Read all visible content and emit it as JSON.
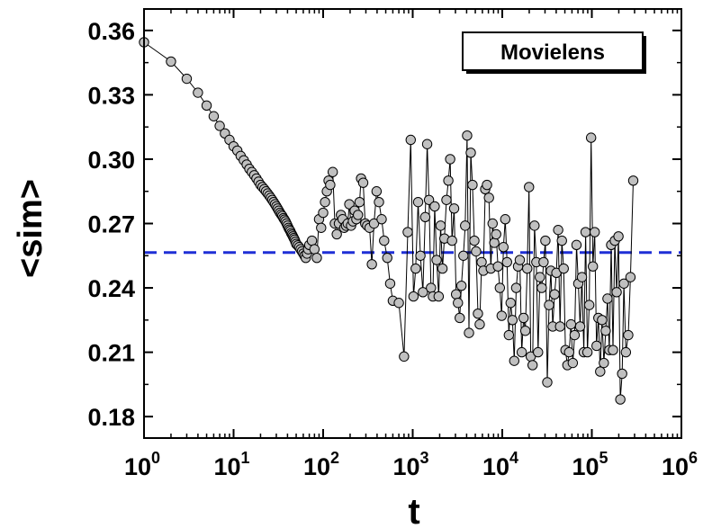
{
  "chart_data": {
    "type": "scatter",
    "xlabel": "t",
    "ylabel": "<sim>",
    "xscale": "log",
    "xlim": [
      1,
      1000000
    ],
    "ylim": [
      0.17,
      0.37
    ],
    "x_ticks": [
      {
        "value": 1,
        "base": "10",
        "exp": "0"
      },
      {
        "value": 10,
        "base": "10",
        "exp": "1"
      },
      {
        "value": 100,
        "base": "10",
        "exp": "2"
      },
      {
        "value": 1000,
        "base": "10",
        "exp": "3"
      },
      {
        "value": 10000,
        "base": "10",
        "exp": "4"
      },
      {
        "value": 100000,
        "base": "10",
        "exp": "5"
      },
      {
        "value": 1000000,
        "base": "10",
        "exp": "6"
      }
    ],
    "y_ticks": [
      {
        "value": 0.18,
        "label": "0.18"
      },
      {
        "value": 0.21,
        "label": "0.21"
      },
      {
        "value": 0.24,
        "label": "0.24"
      },
      {
        "value": 0.27,
        "label": "0.27"
      },
      {
        "value": 0.3,
        "label": "0.30"
      },
      {
        "value": 0.33,
        "label": "0.33"
      },
      {
        "value": 0.36,
        "label": "0.36"
      }
    ],
    "legend": {
      "label": "Movielens",
      "position": "top-right"
    },
    "reference_line": {
      "y": 0.2565,
      "style": "dashed",
      "color": "#1f2fd6"
    },
    "series": [
      {
        "marker_color": "#c0c0c0",
        "line_color": "#000000",
        "points": [
          [
            1,
            0.3545
          ],
          [
            2,
            0.3455
          ],
          [
            3,
            0.3375
          ],
          [
            4,
            0.331
          ],
          [
            5,
            0.325
          ],
          [
            6,
            0.32
          ],
          [
            7,
            0.3155
          ],
          [
            8,
            0.312
          ],
          [
            9,
            0.309
          ],
          [
            10,
            0.306
          ],
          [
            11,
            0.304
          ],
          [
            12,
            0.3015
          ],
          [
            13,
            0.2995
          ],
          [
            14,
            0.2975
          ],
          [
            15,
            0.2955
          ],
          [
            16,
            0.294
          ],
          [
            17,
            0.2925
          ],
          [
            18,
            0.291
          ],
          [
            19,
            0.2895
          ],
          [
            20,
            0.288
          ],
          [
            21,
            0.287
          ],
          [
            22,
            0.286
          ],
          [
            23,
            0.285
          ],
          [
            24,
            0.284
          ],
          [
            25,
            0.283
          ],
          [
            26,
            0.282
          ],
          [
            27,
            0.281
          ],
          [
            28,
            0.28
          ],
          [
            29,
            0.279
          ],
          [
            30,
            0.278
          ],
          [
            31,
            0.277
          ],
          [
            32,
            0.276
          ],
          [
            33,
            0.275
          ],
          [
            34,
            0.2742
          ],
          [
            35,
            0.2735
          ],
          [
            36,
            0.2725
          ],
          [
            37,
            0.2718
          ],
          [
            38,
            0.271
          ],
          [
            39,
            0.27
          ],
          [
            40,
            0.269
          ],
          [
            41,
            0.268
          ],
          [
            42,
            0.2672
          ],
          [
            43,
            0.2665
          ],
          [
            44,
            0.2655
          ],
          [
            45,
            0.2648
          ],
          [
            46,
            0.264
          ],
          [
            47,
            0.2632
          ],
          [
            48,
            0.2625
          ],
          [
            49,
            0.2615
          ],
          [
            50,
            0.2605
          ],
          [
            52,
            0.2598
          ],
          [
            54,
            0.259
          ],
          [
            56,
            0.258
          ],
          [
            58,
            0.257
          ],
          [
            60,
            0.256
          ],
          [
            62,
            0.255
          ],
          [
            64,
            0.254
          ],
          [
            66,
            0.256
          ],
          [
            68,
            0.258
          ],
          [
            70,
            0.26
          ],
          [
            75,
            0.262
          ],
          [
            80,
            0.258
          ],
          [
            85,
            0.254
          ],
          [
            90,
            0.272
          ],
          [
            95,
            0.268
          ],
          [
            100,
            0.275
          ],
          [
            105,
            0.28
          ],
          [
            110,
            0.285
          ],
          [
            115,
            0.29
          ],
          [
            120,
            0.288
          ],
          [
            128,
            0.294
          ],
          [
            135,
            0.27
          ],
          [
            142,
            0.265
          ],
          [
            150,
            0.27
          ],
          [
            158,
            0.274
          ],
          [
            165,
            0.272
          ],
          [
            172,
            0.268
          ],
          [
            180,
            0.269
          ],
          [
            188,
            0.27
          ],
          [
            196,
            0.279
          ],
          [
            205,
            0.269
          ],
          [
            215,
            0.271
          ],
          [
            225,
            0.276
          ],
          [
            235,
            0.272
          ],
          [
            245,
            0.274
          ],
          [
            255,
            0.28
          ],
          [
            265,
            0.291
          ],
          [
            280,
            0.289
          ],
          [
            295,
            0.27
          ],
          [
            310,
            0.269
          ],
          [
            330,
            0.268
          ],
          [
            350,
            0.251
          ],
          [
            370,
            0.27
          ],
          [
            395,
            0.285
          ],
          [
            420,
            0.28
          ],
          [
            450,
            0.272
          ],
          [
            480,
            0.262
          ],
          [
            520,
            0.254
          ],
          [
            560,
            0.242
          ],
          [
            600,
            0.234
          ],
          [
            700,
            0.233
          ],
          [
            800,
            0.208
          ],
          [
            880,
            0.266
          ],
          [
            950,
            0.309
          ],
          [
            1020,
            0.236
          ],
          [
            1080,
            0.249
          ],
          [
            1150,
            0.28
          ],
          [
            1220,
            0.255
          ],
          [
            1300,
            0.238
          ],
          [
            1380,
            0.273
          ],
          [
            1450,
            0.307
          ],
          [
            1520,
            0.281
          ],
          [
            1600,
            0.24
          ],
          [
            1680,
            0.236
          ],
          [
            1760,
            0.278
          ],
          [
            1850,
            0.253
          ],
          [
            1950,
            0.236
          ],
          [
            2050,
            0.269
          ],
          [
            2150,
            0.249
          ],
          [
            2260,
            0.263
          ],
          [
            2380,
            0.281
          ],
          [
            2500,
            0.29
          ],
          [
            2620,
            0.3
          ],
          [
            2750,
            0.262
          ],
          [
            2900,
            0.277
          ],
          [
            3050,
            0.237
          ],
          [
            3200,
            0.233
          ],
          [
            3350,
            0.226
          ],
          [
            3500,
            0.241
          ],
          [
            3680,
            0.255
          ],
          [
            3850,
            0.269
          ],
          [
            4050,
            0.311
          ],
          [
            4250,
            0.219
          ],
          [
            4450,
            0.303
          ],
          [
            4650,
            0.288
          ],
          [
            4880,
            0.262
          ],
          [
            5100,
            0.257
          ],
          [
            5350,
            0.228
          ],
          [
            5600,
            0.223
          ],
          [
            5880,
            0.252
          ],
          [
            6150,
            0.248
          ],
          [
            6450,
            0.286
          ],
          [
            6750,
            0.288
          ],
          [
            7100,
            0.282
          ],
          [
            7450,
            0.249
          ],
          [
            7800,
            0.27
          ],
          [
            8150,
            0.261
          ],
          [
            8550,
            0.265
          ],
          [
            8950,
            0.25
          ],
          [
            9400,
            0.24
          ],
          [
            9850,
            0.227
          ],
          [
            10300,
            0.259
          ],
          [
            10800,
            0.272
          ],
          [
            11300,
            0.252
          ],
          [
            11850,
            0.218
          ],
          [
            12400,
            0.233
          ],
          [
            13000,
            0.225
          ],
          [
            13600,
            0.206
          ],
          [
            14300,
            0.24
          ],
          [
            15000,
            0.25
          ],
          [
            15700,
            0.253
          ],
          [
            16500,
            0.21
          ],
          [
            17300,
            0.226
          ],
          [
            18100,
            0.22
          ],
          [
            19000,
            0.249
          ],
          [
            19900,
            0.287
          ],
          [
            20800,
            0.208
          ],
          [
            21800,
            0.204
          ],
          [
            22900,
            0.269
          ],
          [
            24000,
            0.252
          ],
          [
            25100,
            0.21
          ],
          [
            26300,
            0.245
          ],
          [
            27600,
            0.24
          ],
          [
            28900,
            0.252
          ],
          [
            30300,
            0.262
          ],
          [
            31800,
            0.196
          ],
          [
            33300,
            0.232
          ],
          [
            34900,
            0.248
          ],
          [
            36600,
            0.222
          ],
          [
            38400,
            0.237
          ],
          [
            40200,
            0.247
          ],
          [
            42100,
            0.267
          ],
          [
            44200,
            0.222
          ],
          [
            46300,
            0.262
          ],
          [
            48500,
            0.249
          ],
          [
            50800,
            0.211
          ],
          [
            53300,
            0.204
          ],
          [
            55800,
            0.21
          ],
          [
            58500,
            0.223
          ],
          [
            61300,
            0.205
          ],
          [
            64300,
            0.218
          ],
          [
            67400,
            0.26
          ],
          [
            70600,
            0.242
          ],
          [
            74000,
            0.222
          ],
          [
            77600,
            0.245
          ],
          [
            81300,
            0.21
          ],
          [
            85200,
            0.266
          ],
          [
            89300,
            0.21
          ],
          [
            93600,
            0.232
          ],
          [
            98100,
            0.31
          ],
          [
            102800,
            0.25
          ],
          [
            107700,
            0.266
          ],
          [
            112900,
            0.213
          ],
          [
            118300,
            0.226
          ],
          [
            124000,
            0.201
          ],
          [
            130000,
            0.225
          ],
          [
            136200,
            0.205
          ],
          [
            142800,
            0.22
          ],
          [
            149600,
            0.235
          ],
          [
            156800,
            0.211
          ],
          [
            164400,
            0.26
          ],
          [
            172300,
            0.211
          ],
          [
            180600,
            0.262
          ],
          [
            189300,
            0.238
          ],
          [
            198400,
            0.264
          ],
          [
            208000,
            0.188
          ],
          [
            218000,
            0.2
          ],
          [
            228000,
            0.242
          ],
          [
            240000,
            0.21
          ],
          [
            255000,
            0.218
          ],
          [
            270000,
            0.245
          ],
          [
            290000,
            0.29
          ]
        ]
      }
    ]
  }
}
